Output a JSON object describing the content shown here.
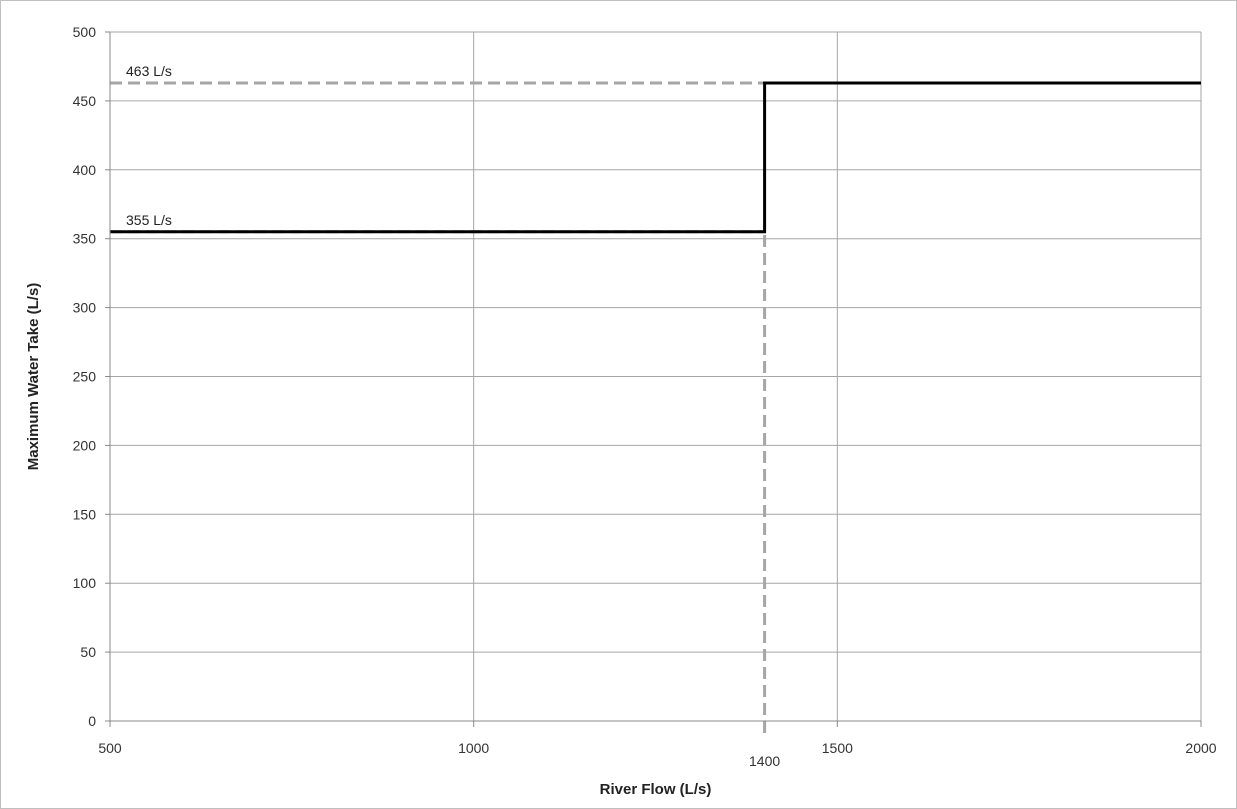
{
  "chart_data": {
    "type": "line",
    "title": "",
    "xlabel": "River Flow (L/s)",
    "ylabel": "Maximum Water Take (L/s)",
    "xlim": [
      500,
      2000
    ],
    "ylim": [
      0,
      500
    ],
    "x_ticks": [
      500,
      1000,
      1500,
      2000
    ],
    "x_extra_tick": 1400,
    "y_ticks": [
      0,
      50,
      100,
      150,
      200,
      250,
      300,
      350,
      400,
      450,
      500
    ],
    "grid": true,
    "legend": "none",
    "series": [
      {
        "step": "post",
        "color": "#000000",
        "x": [
          500,
          1400,
          1400,
          2000
        ],
        "y": [
          355,
          355,
          463,
          463
        ]
      }
    ],
    "reference_lines": [
      {
        "orientation": "horizontal",
        "value": 463,
        "from": 500,
        "to": 1400,
        "color": "#a6a6a6",
        "style": "dashed"
      },
      {
        "orientation": "horizontal",
        "value": 355,
        "from": 500,
        "to": 1400,
        "color": "#a6a6a6",
        "style": "dashed"
      },
      {
        "orientation": "vertical",
        "value": 1400,
        "from": 0,
        "to": 355,
        "color": "#a6a6a6",
        "style": "dashed"
      }
    ],
    "annotations": [
      {
        "text": "463 L/s",
        "x": 500,
        "y": 463
      },
      {
        "text": "355 L/s",
        "x": 500,
        "y": 355
      }
    ]
  }
}
